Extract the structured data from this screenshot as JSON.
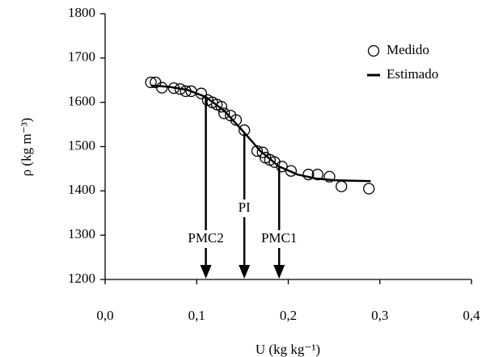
{
  "chart_data": {
    "type": "scatter",
    "x_label": "U (kg kg⁻¹)",
    "y_label": "ρ (kg m⁻³)",
    "xlim": [
      0,
      0.4
    ],
    "ylim": [
      1200,
      1800
    ],
    "xticks": [
      {
        "value": 0,
        "label": "0,0"
      },
      {
        "value": 0.1,
        "label": "0,1"
      },
      {
        "value": 0.2,
        "label": "0,2"
      },
      {
        "value": 0.3,
        "label": "0,3"
      },
      {
        "value": 0.4,
        "label": "0,4"
      }
    ],
    "yticks": [
      1200,
      1300,
      1400,
      1500,
      1600,
      1700,
      1800
    ],
    "legend": "upper right",
    "series": [
      {
        "name": "Medido",
        "color": "#000000",
        "marker": "circle",
        "x": [
          0.05,
          0.055,
          0.062,
          0.075,
          0.082,
          0.088,
          0.094,
          0.105,
          0.112,
          0.117,
          0.122,
          0.127,
          0.13,
          0.137,
          0.143,
          0.152,
          0.166,
          0.172,
          0.175,
          0.18,
          0.185,
          0.193,
          0.203,
          0.222,
          0.232,
          0.245,
          0.258,
          0.288
        ],
        "values": [
          1645,
          1645,
          1633,
          1632,
          1630,
          1625,
          1625,
          1620,
          1605,
          1600,
          1595,
          1590,
          1575,
          1570,
          1560,
          1537,
          1490,
          1487,
          1475,
          1470,
          1465,
          1455,
          1445,
          1437,
          1437,
          1432,
          1410,
          1405
        ]
      },
      {
        "name": "Estimado",
        "color": "#000000",
        "marker": "line",
        "x": [
          0.05,
          0.07,
          0.09,
          0.11,
          0.13,
          0.15,
          0.17,
          0.19,
          0.21,
          0.23,
          0.25,
          0.27,
          0.29
        ],
        "values": [
          1638,
          1635,
          1628,
          1612,
          1581,
          1536,
          1489,
          1455,
          1437,
          1428,
          1424,
          1423,
          1422
        ]
      }
    ],
    "annotations": [
      {
        "text": "PMC2",
        "x": 0.11
      },
      {
        "text": "PI",
        "x": 0.152
      },
      {
        "text": "PMC1",
        "x": 0.19
      }
    ]
  }
}
